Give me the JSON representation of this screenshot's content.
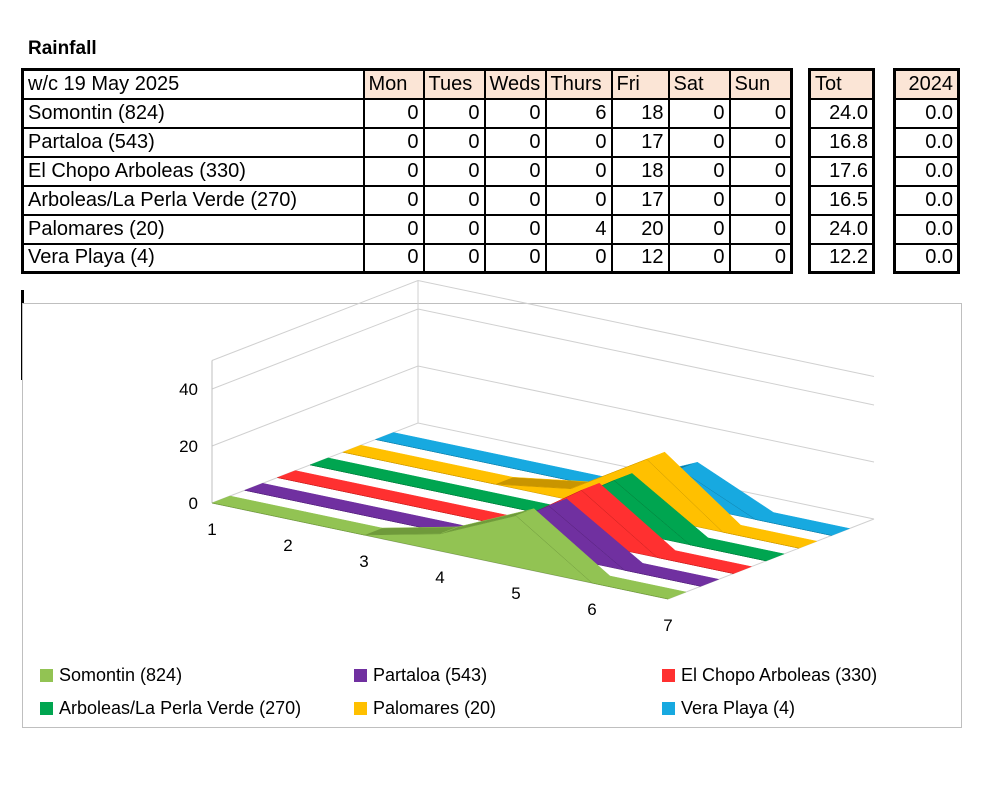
{
  "title": "Rainfall",
  "table": {
    "week_label": "w/c 19 May 2025",
    "days": [
      "Mon",
      "Tues",
      "Weds",
      "Thurs",
      "Fri",
      "Sat",
      "Sun"
    ],
    "tot_header": "Tot",
    "prev_header": "2024",
    "rows": [
      {
        "name": "Somontin (824)",
        "days": [
          "0",
          "0",
          "0",
          "6",
          "18",
          "0",
          "0"
        ],
        "tot": "24.0",
        "prev": "0.0"
      },
      {
        "name": "Partaloa (543)",
        "days": [
          "0",
          "0",
          "0",
          "0",
          "17",
          "0",
          "0"
        ],
        "tot": "16.8",
        "prev": "0.0"
      },
      {
        "name": "El Chopo Arboleas (330)",
        "days": [
          "0",
          "0",
          "0",
          "0",
          "18",
          "0",
          "0"
        ],
        "tot": "17.6",
        "prev": "0.0"
      },
      {
        "name": "Arboleas/La Perla Verde (270)",
        "days": [
          "0",
          "0",
          "0",
          "0",
          "17",
          "0",
          "0"
        ],
        "tot": "16.5",
        "prev": "0.0"
      },
      {
        "name": "Palomares (20)",
        "days": [
          "0",
          "0",
          "0",
          "4",
          "20",
          "0",
          "0"
        ],
        "tot": "24.0",
        "prev": "0.0"
      },
      {
        "name": "Vera Playa (4)",
        "days": [
          "0",
          "0",
          "0",
          "0",
          "12",
          "0",
          "0"
        ],
        "tot": "12.2",
        "prev": "0.0"
      }
    ]
  },
  "chart_data": {
    "type": "area",
    "subtype": "3d-area",
    "categories": [
      "1",
      "2",
      "3",
      "4",
      "5",
      "6",
      "7"
    ],
    "yticks": [
      "0",
      "20",
      "40"
    ],
    "ylim": [
      0,
      40
    ],
    "legend_position": "bottom",
    "series": [
      {
        "name": "Somontin (824)",
        "values": [
          0,
          0,
          0,
          6,
          18,
          0,
          0
        ],
        "color": "#92c353",
        "side_color": "#6f9a3b"
      },
      {
        "name": "Partaloa (543)",
        "values": [
          0,
          0,
          0,
          0,
          17,
          0,
          0
        ],
        "color": "#7030a0",
        "side_color": "#53227a"
      },
      {
        "name": "El Chopo Arboleas (330)",
        "values": [
          0,
          0,
          0,
          0,
          18,
          0,
          0
        ],
        "color": "#ff3030",
        "side_color": "#c41e1e"
      },
      {
        "name": "Arboleas/La Perla Verde (270)",
        "values": [
          0,
          0,
          0,
          0,
          17,
          0,
          0
        ],
        "color": "#00a550",
        "side_color": "#007a3a"
      },
      {
        "name": "Palomares (20)",
        "values": [
          0,
          0,
          0,
          4,
          20,
          0,
          0
        ],
        "color": "#ffc000",
        "side_color": "#c99500"
      },
      {
        "name": "Vera Playa (4)",
        "values": [
          0,
          0,
          0,
          0,
          12,
          0,
          0
        ],
        "color": "#17a9e0",
        "side_color": "#0f7ea8"
      }
    ]
  }
}
